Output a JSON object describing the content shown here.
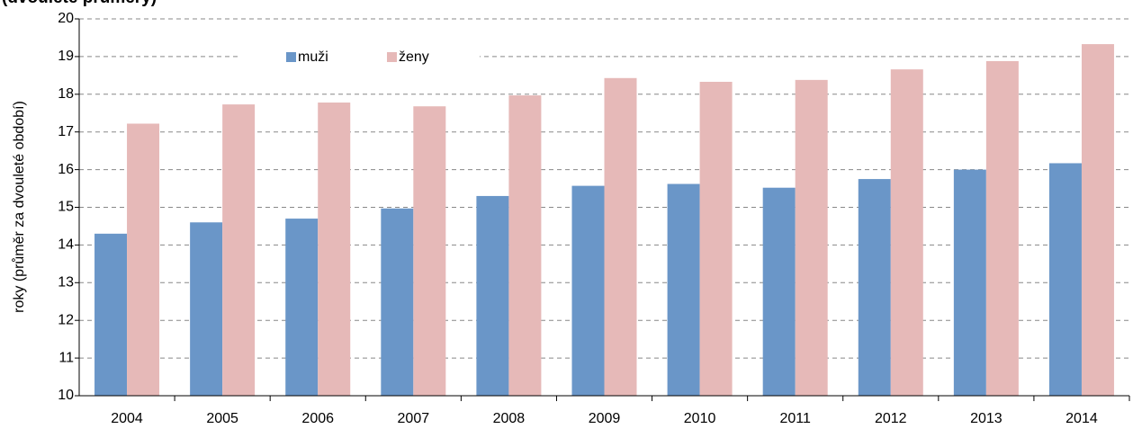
{
  "chart_data": {
    "type": "bar",
    "title": "(dvouleté průměry)",
    "y_label": "roky (průměr za dvouleté období)",
    "categories": [
      "2004",
      "2005",
      "2006",
      "2007",
      "2008",
      "2009",
      "2010",
      "2011",
      "2012",
      "2013",
      "2014"
    ],
    "series": [
      {
        "name": "muži",
        "color": "#6a96c8",
        "values": [
          14.3,
          14.6,
          14.7,
          14.97,
          15.3,
          15.57,
          15.62,
          15.52,
          15.75,
          16.0,
          16.17
        ]
      },
      {
        "name": "ženy",
        "color": "#e6b9b8",
        "values": [
          17.22,
          17.73,
          17.78,
          17.68,
          17.97,
          18.43,
          18.33,
          18.38,
          18.66,
          18.88,
          19.33
        ]
      }
    ],
    "ylim": [
      10,
      20
    ],
    "yticks": [
      10,
      11,
      12,
      13,
      14,
      15,
      16,
      17,
      18,
      19,
      20
    ],
    "grid": true
  }
}
